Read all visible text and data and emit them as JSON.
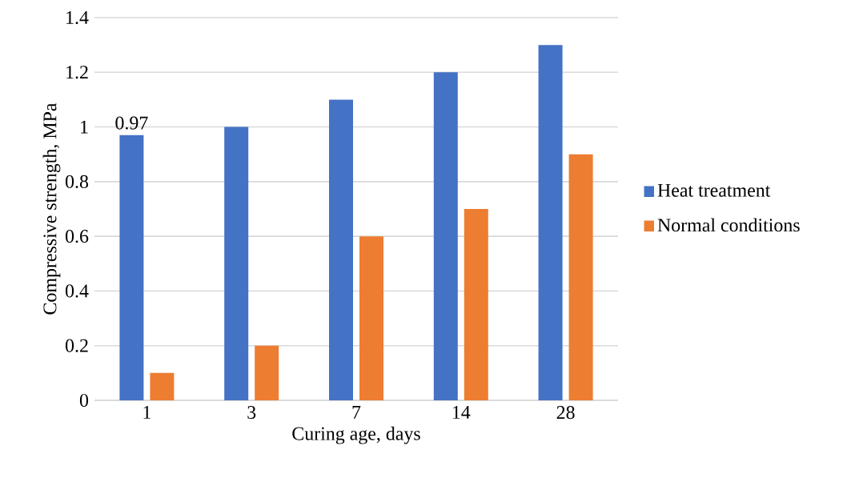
{
  "chart_data": {
    "type": "bar",
    "xlabel": "Curing age, days",
    "ylabel": "Compressive strength, MPa",
    "categories": [
      "1",
      "3",
      "7",
      "14",
      "28"
    ],
    "series": [
      {
        "name": "Heat treatment",
        "color": "#4472c4",
        "values": [
          0.97,
          1.0,
          1.1,
          1.2,
          1.3
        ],
        "value_labels": [
          "0.97",
          null,
          null,
          null,
          null
        ]
      },
      {
        "name": "Normal conditions",
        "color": "#ed7d31",
        "values": [
          0.1,
          0.2,
          0.6,
          0.7,
          0.9
        ]
      }
    ],
    "ylim": [
      0,
      1.4
    ],
    "yticks": [
      0,
      0.2,
      0.4,
      0.6,
      0.8,
      1,
      1.2,
      1.4
    ],
    "grid": "y",
    "legend": "right"
  }
}
